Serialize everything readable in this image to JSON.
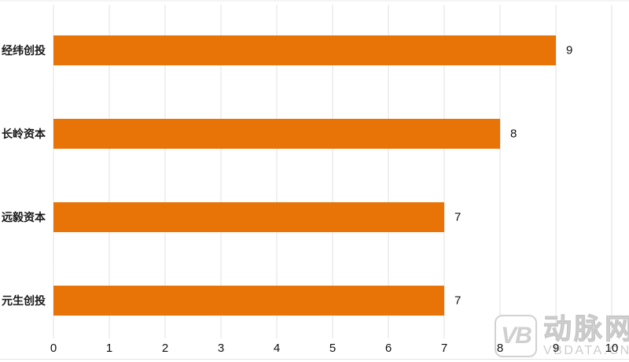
{
  "chart_data": {
    "type": "bar",
    "orientation": "horizontal",
    "title": "",
    "xlabel": "",
    "ylabel": "",
    "categories": [
      "经纬创投",
      "长岭资本",
      "远毅资本",
      "元生创投"
    ],
    "values": [
      9,
      8,
      7,
      7
    ],
    "value_labels": [
      "9",
      "8",
      "7",
      "7"
    ],
    "xlim": [
      0,
      10
    ],
    "x_ticks": [
      0,
      1,
      2,
      3,
      4,
      5,
      6,
      7,
      8,
      9,
      10
    ],
    "grid": "vertical",
    "legend": "none",
    "bar_color": "#E87307",
    "grid_color": "#E2E2E2",
    "text_color": "#111111"
  },
  "watermark": {
    "logo_monogram": "VB",
    "brand_cn": "动脉网",
    "brand_domain": "VBDATA.CN",
    "color": "#CCCCCC"
  }
}
